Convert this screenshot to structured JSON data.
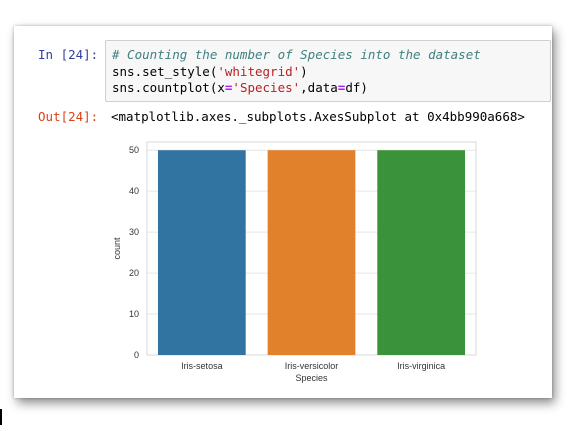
{
  "cell": {
    "in_prompt": "In [24]:",
    "code_comment": "# Counting the number of Species into the dataset",
    "code_line2_pre": "sns.set_style(",
    "code_line2_str": "'whitegrid'",
    "code_line2_post": ")",
    "code_line3_pre": "sns.countplot(x",
    "code_line3_eq1": "=",
    "code_line3_str": "'Species'",
    "code_line3_mid": ",data",
    "code_line3_eq2": "=",
    "code_line3_post": "df)",
    "out_prompt": "Out[24]:",
    "out_text": "<matplotlib.axes._subplots.AxesSubplot at 0x4bb990a668>"
  },
  "chart_data": {
    "type": "bar",
    "categories": [
      "Iris-setosa",
      "Iris-versicolor",
      "Iris-virginica"
    ],
    "values": [
      50,
      50,
      50
    ],
    "colors": [
      "#3274a1",
      "#e1812c",
      "#3a923a"
    ],
    "xlabel": "Species",
    "ylabel": "count",
    "ylim": [
      0,
      52
    ],
    "yticks": [
      0,
      10,
      20,
      30,
      40,
      50
    ],
    "grid": true
  }
}
